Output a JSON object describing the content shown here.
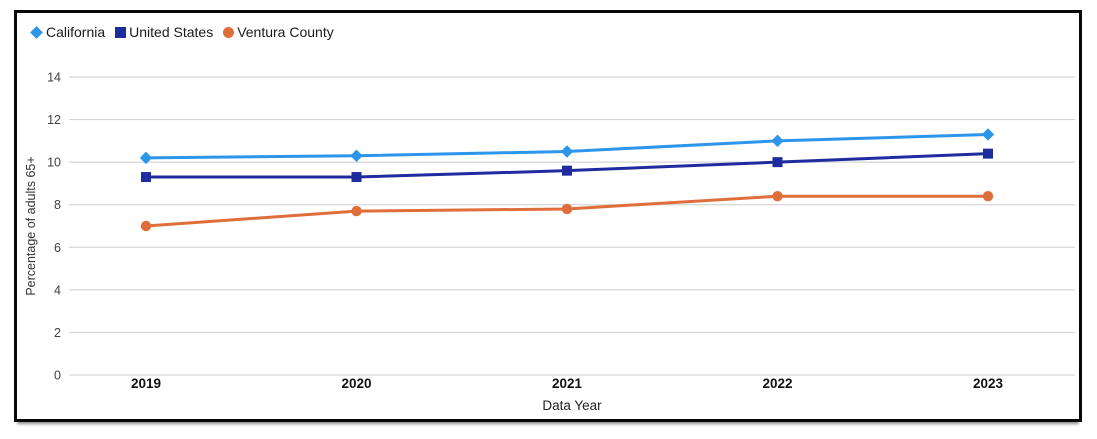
{
  "chart_data": {
    "type": "line",
    "categories": [
      "2019",
      "2020",
      "2021",
      "2022",
      "2023"
    ],
    "series": [
      {
        "name": "California",
        "marker": "diamond",
        "color": "#2e96ea",
        "values": [
          10.2,
          10.3,
          10.5,
          11.0,
          11.3
        ]
      },
      {
        "name": "United States",
        "marker": "square",
        "color": "#1f2c9e",
        "values": [
          9.3,
          9.3,
          9.6,
          10.0,
          10.4
        ]
      },
      {
        "name": "Ventura County",
        "marker": "circle",
        "color": "#df6e3a",
        "values": [
          7.0,
          7.7,
          7.8,
          8.4,
          8.4
        ]
      }
    ],
    "title": "",
    "xlabel": "Data Year",
    "ylabel": "Percentage of adults 65+",
    "ylim": [
      0,
      14
    ],
    "ytick_step": 2,
    "grid": true,
    "legend_position": "top-left",
    "gridline_color": "#d6d6d6",
    "tick_label_color": "#404040",
    "x_tick_label_color": "#111111",
    "axis_title_color": "#333333"
  }
}
